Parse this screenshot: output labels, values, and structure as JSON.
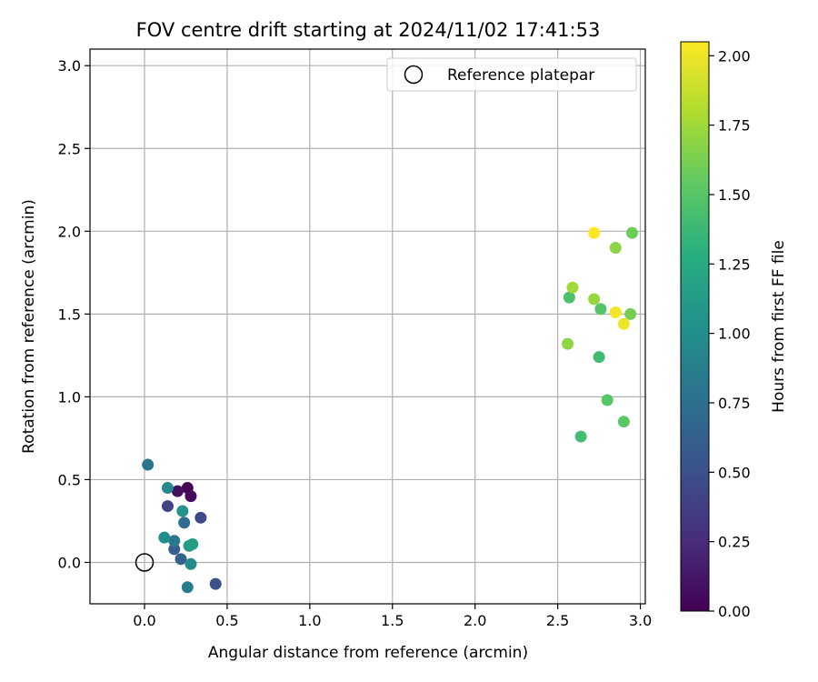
{
  "chart_data": {
    "type": "scatter",
    "title": "FOV centre drift starting at 2024/11/02 17:41:53",
    "xlabel": "Angular distance from reference (arcmin)",
    "ylabel": "Rotation from reference (arcmin)",
    "xlim": [
      -0.33,
      3.03
    ],
    "ylim": [
      -0.25,
      3.1
    ],
    "xticks": [
      0.0,
      0.5,
      1.0,
      1.5,
      2.0,
      2.5,
      3.0
    ],
    "xtick_labels": [
      "0.0",
      "0.5",
      "1.0",
      "1.5",
      "2.0",
      "2.5",
      "3.0"
    ],
    "yticks": [
      0.0,
      0.5,
      1.0,
      1.5,
      2.0,
      2.5,
      3.0
    ],
    "ytick_labels": [
      "0.0",
      "0.5",
      "1.0",
      "1.5",
      "2.0",
      "2.5",
      "3.0"
    ],
    "grid": true,
    "legend": {
      "placement": "top-right",
      "entries": [
        {
          "label": "Reference platepar",
          "marker": "hollow-circle",
          "x": 0.0,
          "y": 0.0
        }
      ]
    },
    "colorbar": {
      "label": "Hours from first FF file",
      "colormap": "viridis",
      "range": [
        0.0,
        2.05
      ],
      "ticks": [
        0.0,
        0.25,
        0.5,
        0.75,
        1.0,
        1.25,
        1.5,
        1.75,
        2.0
      ],
      "tick_labels": [
        "0.00",
        "0.25",
        "0.50",
        "0.75",
        "1.00",
        "1.25",
        "1.50",
        "1.75",
        "2.00"
      ]
    },
    "points": [
      {
        "x": 0.26,
        "y": 0.45,
        "c": 0.0
      },
      {
        "x": 0.28,
        "y": 0.4,
        "c": 0.05
      },
      {
        "x": 0.2,
        "y": 0.43,
        "c": 0.08
      },
      {
        "x": 0.14,
        "y": 0.34,
        "c": 0.4
      },
      {
        "x": 0.34,
        "y": 0.27,
        "c": 0.45
      },
      {
        "x": 0.43,
        "y": -0.13,
        "c": 0.5
      },
      {
        "x": 0.18,
        "y": 0.08,
        "c": 0.6
      },
      {
        "x": 0.22,
        "y": 0.02,
        "c": 0.65
      },
      {
        "x": 0.24,
        "y": 0.24,
        "c": 0.72
      },
      {
        "x": 0.02,
        "y": 0.59,
        "c": 0.78
      },
      {
        "x": 0.18,
        "y": 0.13,
        "c": 0.82
      },
      {
        "x": 0.26,
        "y": -0.15,
        "c": 0.86
      },
      {
        "x": 0.14,
        "y": 0.45,
        "c": 0.95
      },
      {
        "x": 0.28,
        "y": -0.01,
        "c": 0.98
      },
      {
        "x": 0.12,
        "y": 0.15,
        "c": 1.0
      },
      {
        "x": 0.23,
        "y": 0.31,
        "c": 1.05
      },
      {
        "x": 0.27,
        "y": 0.1,
        "c": 1.1
      },
      {
        "x": 0.29,
        "y": 0.11,
        "c": 1.15
      },
      {
        "x": 2.75,
        "y": 1.24,
        "c": 1.4
      },
      {
        "x": 2.64,
        "y": 0.76,
        "c": 1.42
      },
      {
        "x": 2.57,
        "y": 1.6,
        "c": 1.45
      },
      {
        "x": 2.76,
        "y": 1.53,
        "c": 1.48
      },
      {
        "x": 2.8,
        "y": 0.98,
        "c": 1.5
      },
      {
        "x": 2.9,
        "y": 0.85,
        "c": 1.52
      },
      {
        "x": 2.95,
        "y": 1.99,
        "c": 1.58
      },
      {
        "x": 2.94,
        "y": 1.5,
        "c": 1.62
      },
      {
        "x": 2.85,
        "y": 1.9,
        "c": 1.68
      },
      {
        "x": 2.72,
        "y": 1.59,
        "c": 1.72
      },
      {
        "x": 2.56,
        "y": 1.32,
        "c": 1.7
      },
      {
        "x": 2.59,
        "y": 1.66,
        "c": 1.75
      },
      {
        "x": 2.9,
        "y": 1.44,
        "c": 2.0
      },
      {
        "x": 2.85,
        "y": 1.51,
        "c": 2.02
      },
      {
        "x": 2.72,
        "y": 1.99,
        "c": 2.05
      }
    ]
  }
}
